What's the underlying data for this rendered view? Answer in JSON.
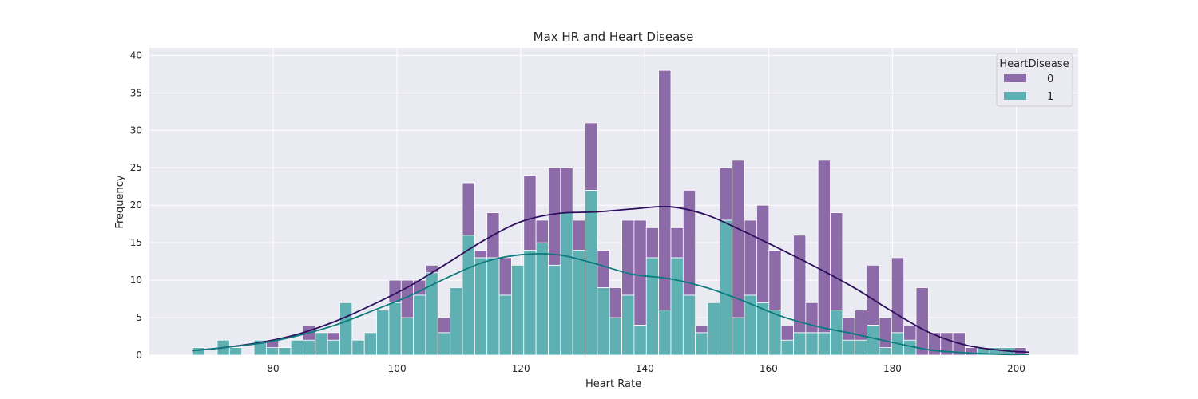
{
  "chart_data": {
    "type": "bar",
    "title": "Max HR and Heart Disease",
    "xlabel": "Heart Rate",
    "ylabel": "Frequency",
    "xlim": [
      60,
      210
    ],
    "ylim": [
      0,
      41
    ],
    "xticks": [
      80,
      100,
      120,
      140,
      160,
      180,
      200
    ],
    "yticks": [
      0,
      5,
      10,
      15,
      20,
      25,
      30,
      35,
      40
    ],
    "grid": true,
    "stacked": true,
    "bin_start": 67.0,
    "bin_width": 1.98,
    "legend": {
      "title": "HeartDisease",
      "placement": "top-right"
    },
    "series": [
      {
        "name": "1",
        "color": "#5fb0b2",
        "values": [
          1,
          0,
          2,
          1,
          0,
          2,
          1,
          1,
          2,
          2,
          3,
          2,
          7,
          2,
          3,
          6,
          7,
          5,
          8,
          11,
          3,
          9,
          16,
          13,
          13,
          8,
          12,
          14,
          15,
          12,
          19,
          14,
          22,
          9,
          5,
          8,
          4,
          13,
          6,
          13,
          8,
          3,
          7,
          18,
          5,
          8,
          7,
          6,
          2,
          3,
          3,
          3,
          6,
          2,
          2,
          4,
          1,
          3,
          2,
          0,
          0,
          0,
          0,
          0,
          1,
          1,
          1,
          0
        ]
      },
      {
        "name": "0",
        "color": "#8c6ba8",
        "values": [
          0,
          0,
          0,
          0,
          0,
          0,
          1,
          0,
          0,
          2,
          0,
          1,
          0,
          0,
          0,
          0,
          3,
          5,
          2,
          1,
          2,
          0,
          7,
          1,
          6,
          5,
          0,
          10,
          3,
          13,
          6,
          4,
          9,
          5,
          4,
          10,
          14,
          4,
          32,
          4,
          14,
          1,
          0,
          7,
          21,
          10,
          13,
          8,
          2,
          13,
          4,
          23,
          13,
          3,
          4,
          8,
          4,
          10,
          2,
          9,
          3,
          3,
          3,
          1,
          0,
          0,
          0,
          1
        ]
      }
    ],
    "kde": [
      {
        "name": "0",
        "color": "#2d0f5e",
        "x": [
          67,
          72,
          78,
          84,
          90,
          96,
          102,
          108,
          114,
          120,
          126,
          132,
          138,
          144,
          150,
          156,
          162,
          168,
          174,
          180,
          186,
          192,
          198,
          202
        ],
        "y": [
          0.6,
          1.0,
          1.7,
          2.8,
          4.5,
          6.7,
          9.2,
          12.2,
          15.3,
          17.8,
          18.9,
          19.1,
          19.5,
          19.8,
          18.7,
          16.5,
          14.1,
          11.6,
          8.9,
          5.8,
          3.0,
          1.3,
          0.6,
          0.4
        ]
      },
      {
        "name": "1",
        "color": "#0c7b7d",
        "x": [
          67,
          72,
          78,
          84,
          90,
          96,
          102,
          108,
          114,
          120,
          126,
          132,
          138,
          144,
          150,
          156,
          162,
          168,
          174,
          180,
          186,
          192,
          198,
          202
        ],
        "y": [
          0.6,
          1.0,
          1.6,
          2.6,
          4.0,
          5.9,
          7.9,
          10.3,
          12.4,
          13.4,
          13.4,
          12.2,
          10.8,
          10.2,
          9.0,
          7.2,
          5.2,
          3.8,
          2.8,
          1.7,
          0.7,
          0.3,
          0.1,
          0.1
        ]
      }
    ]
  }
}
